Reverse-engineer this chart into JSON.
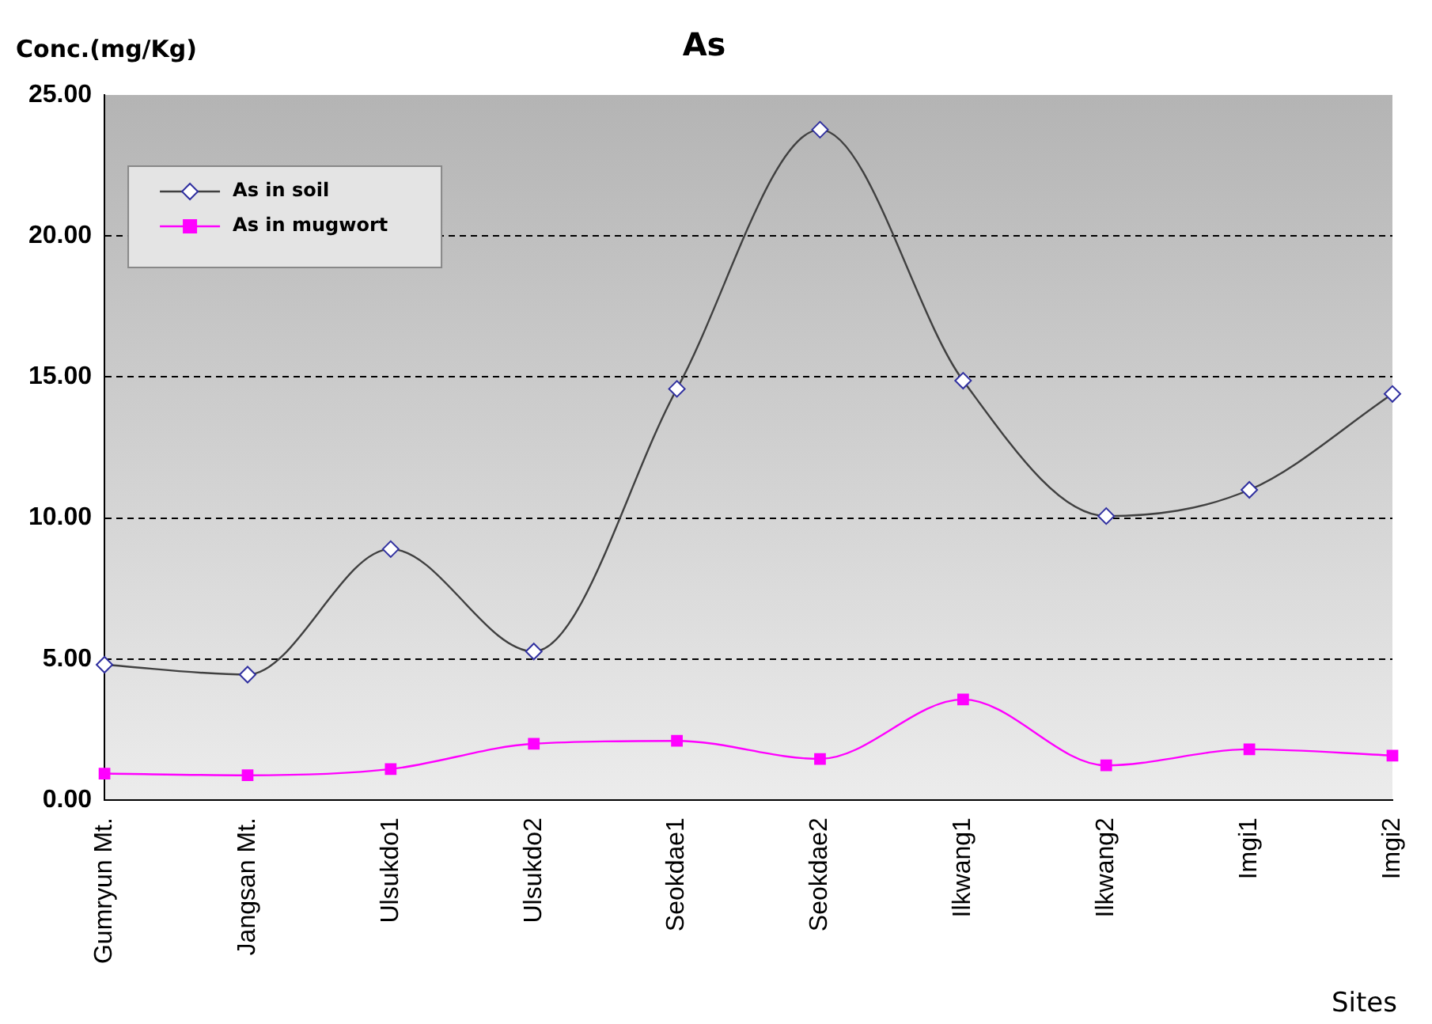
{
  "chart_data": {
    "type": "line",
    "title": "As",
    "xlabel": "Sites",
    "ylabel": "Conc.(mg/Kg)",
    "categories": [
      "Gumryun Mt.",
      "Jangsan Mt.",
      "Ulsukdo1",
      "Ulsukdo2",
      "Seokdae1",
      "Seokdae2",
      "Ilkwang1",
      "Ilkwang2",
      "Imgi1",
      "Imgi2"
    ],
    "series": [
      {
        "name": "As in soil",
        "color": "#404040",
        "marker": "diamond",
        "values": [
          4.8,
          4.45,
          8.9,
          5.27,
          14.58,
          23.77,
          14.87,
          10.07,
          11.0,
          14.4
        ]
      },
      {
        "name": "As in mugwort",
        "color": "#ff00ff",
        "marker": "square",
        "values": [
          0.94,
          0.88,
          1.1,
          2.0,
          2.1,
          1.46,
          3.57,
          1.23,
          1.8,
          1.58
        ]
      }
    ],
    "ylim": [
      0,
      25
    ],
    "yticks": [
      {
        "value": 0,
        "label": "0.00"
      },
      {
        "value": 5,
        "label": "5.00"
      },
      {
        "value": 10,
        "label": "10.00"
      },
      {
        "value": 15,
        "label": "15.00"
      },
      {
        "value": 20,
        "label": "20.00"
      },
      {
        "value": 25,
        "label": "25.00"
      }
    ],
    "grid": "y",
    "legend": "top left",
    "line_style": "solid"
  }
}
